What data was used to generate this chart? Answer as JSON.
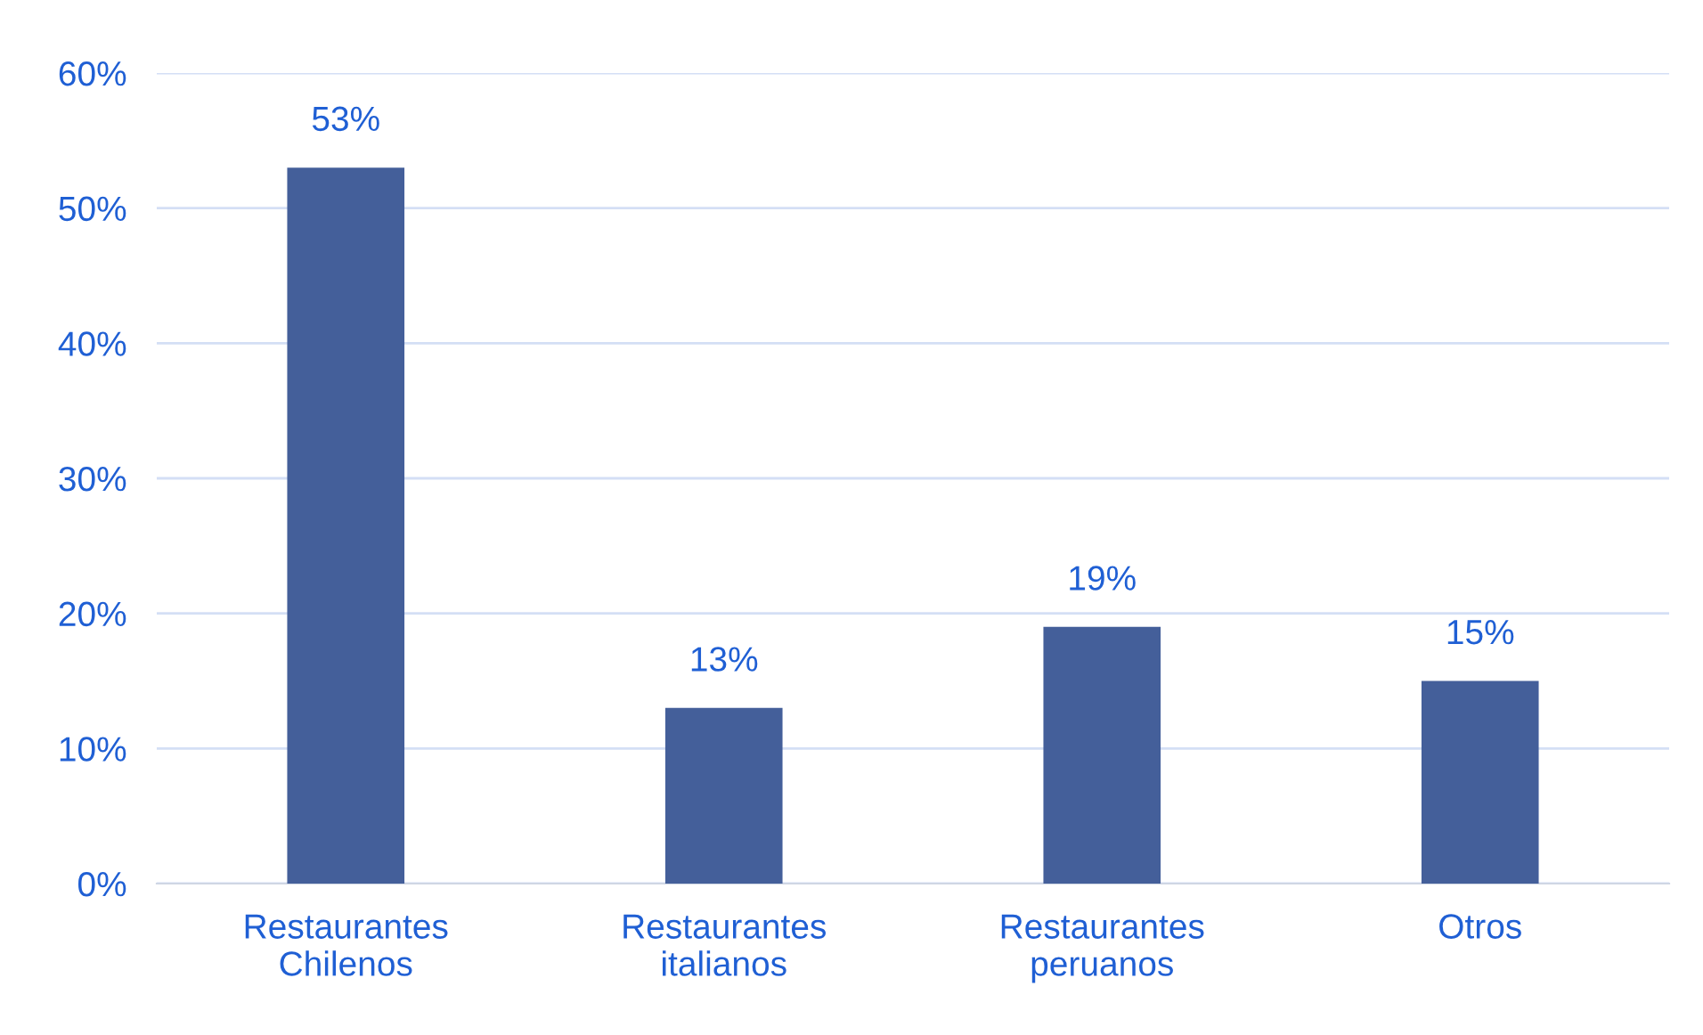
{
  "chart_data": {
    "type": "bar",
    "categories": [
      "Restaurantes\nChilenos",
      "Restaurantes\nitalianos",
      "Restaurantes\nperuanos",
      "Otros"
    ],
    "values": [
      53,
      13,
      19,
      15
    ],
    "value_labels": [
      "53%",
      "13%",
      "19%",
      "15%"
    ],
    "color": "#445f9a",
    "ylim": [
      0,
      60
    ],
    "yticks": [
      {
        "value": 0,
        "label": "0%"
      },
      {
        "value": 10,
        "label": "10%"
      },
      {
        "value": 20,
        "label": "20%"
      },
      {
        "value": 30,
        "label": "30%"
      },
      {
        "value": 40,
        "label": "40%"
      },
      {
        "value": 50,
        "label": "50%"
      },
      {
        "value": 60,
        "label": "60%"
      }
    ],
    "grid": "y"
  }
}
